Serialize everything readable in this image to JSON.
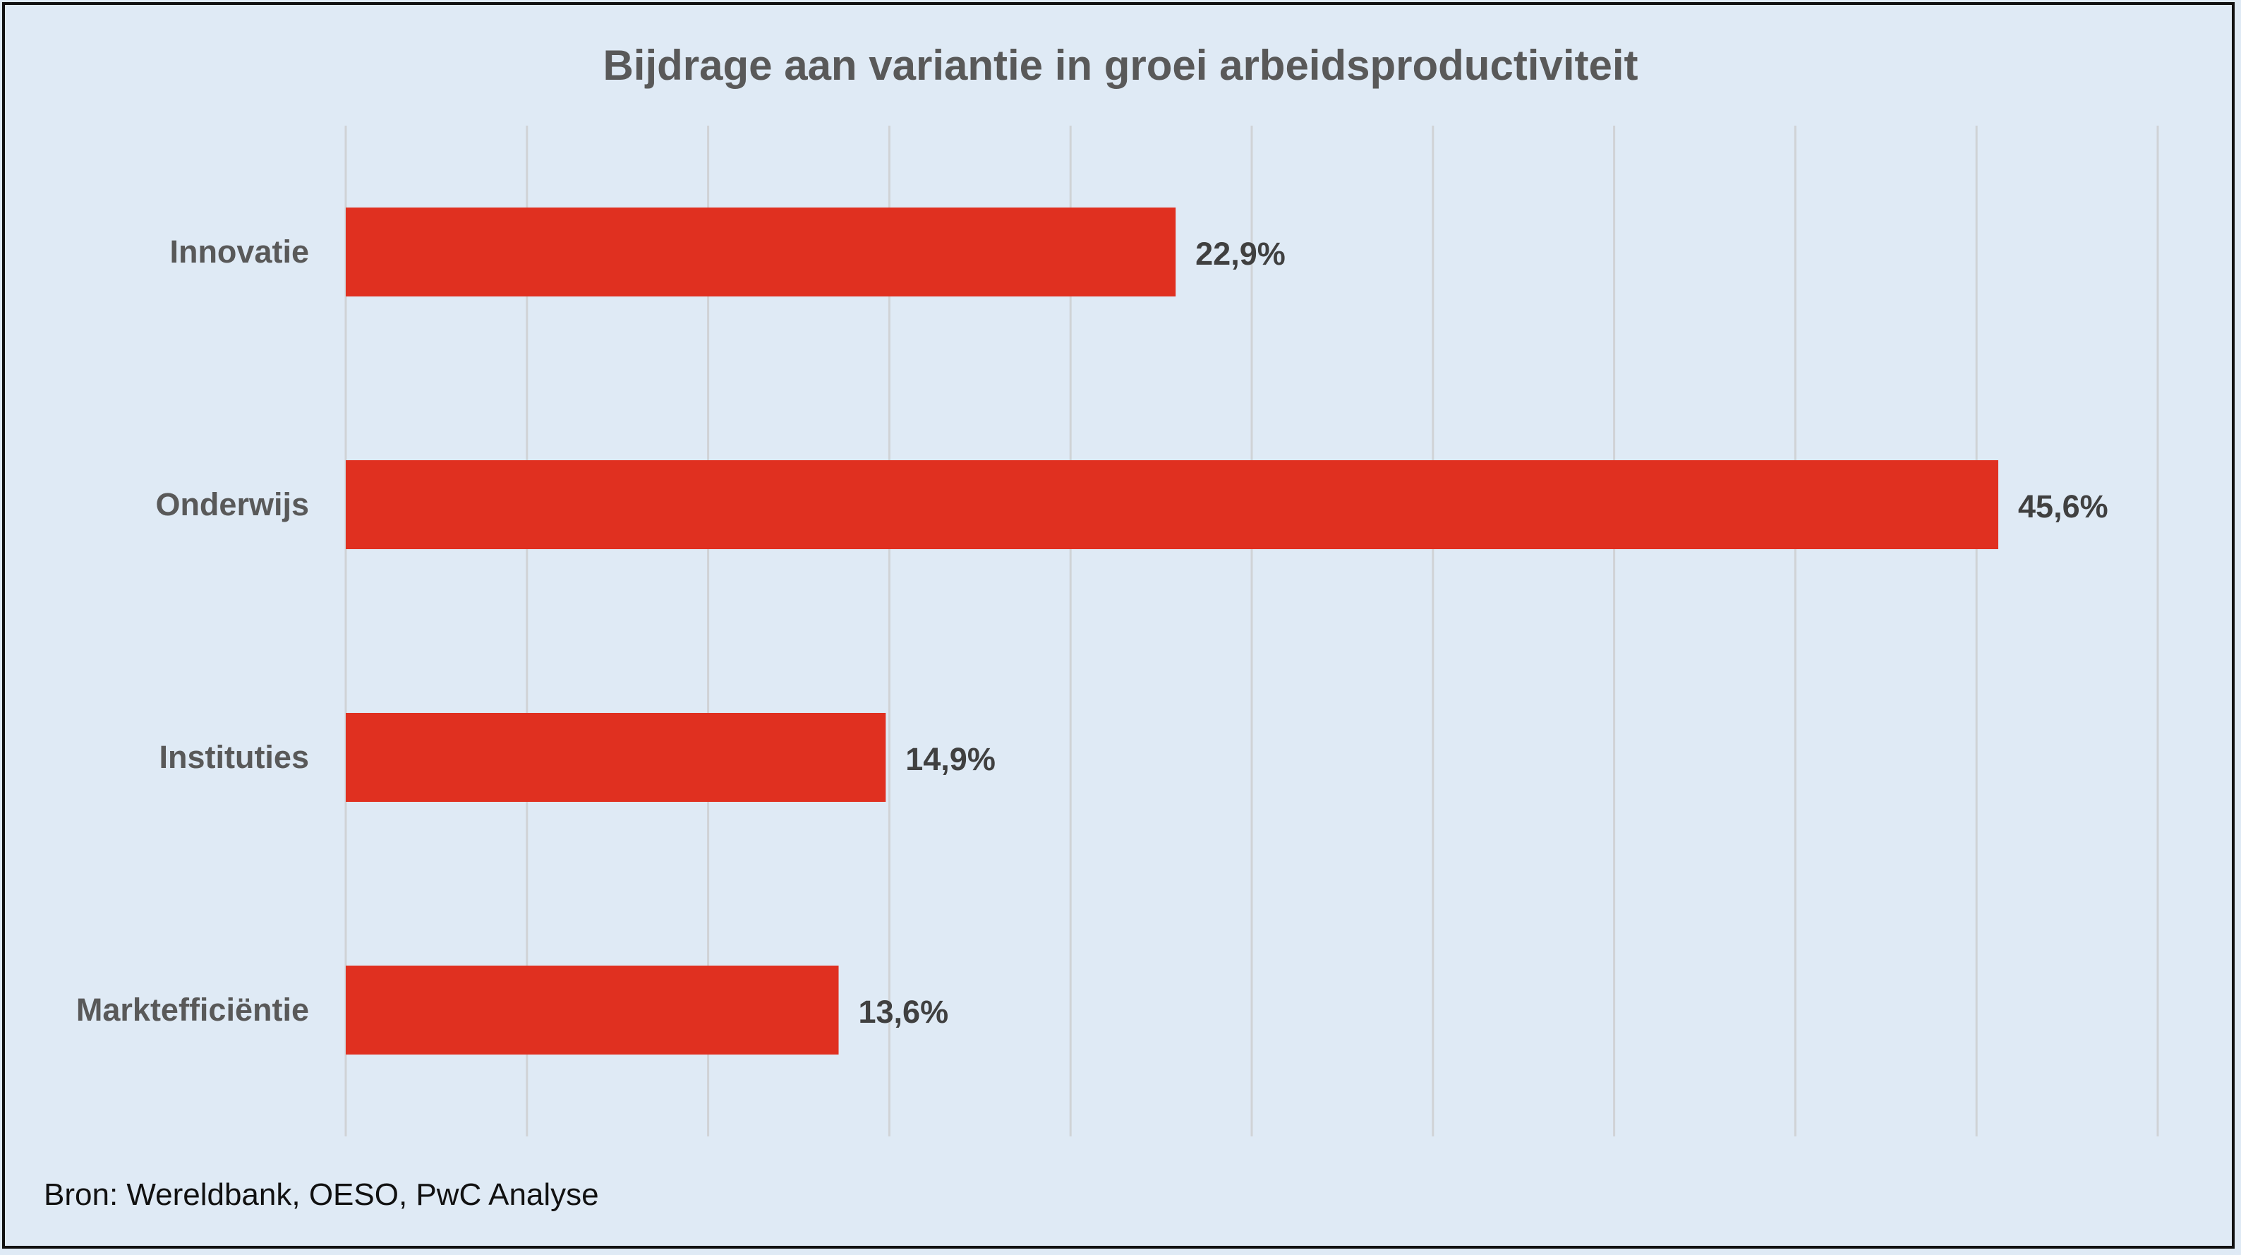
{
  "chart_data": {
    "type": "bar",
    "orientation": "horizontal",
    "title": "Bijdrage aan variantie in groei arbeidsproductiviteit",
    "categories": [
      "Innovatie",
      "Onderwijs",
      "Instituties",
      "Marktefficiëntie"
    ],
    "values": [
      22.9,
      45.6,
      14.9,
      13.6
    ],
    "data_labels": [
      "22,9%",
      "45,6%",
      "14,9%",
      "13,6%"
    ],
    "xlabel": "",
    "ylabel": "",
    "xlim": [
      0,
      50
    ],
    "x_grid_step": 5,
    "grid": true,
    "legend": "none",
    "bar_color": "#e03020"
  },
  "source": "Bron: Wereldbank, OESO, PwC Analyse"
}
